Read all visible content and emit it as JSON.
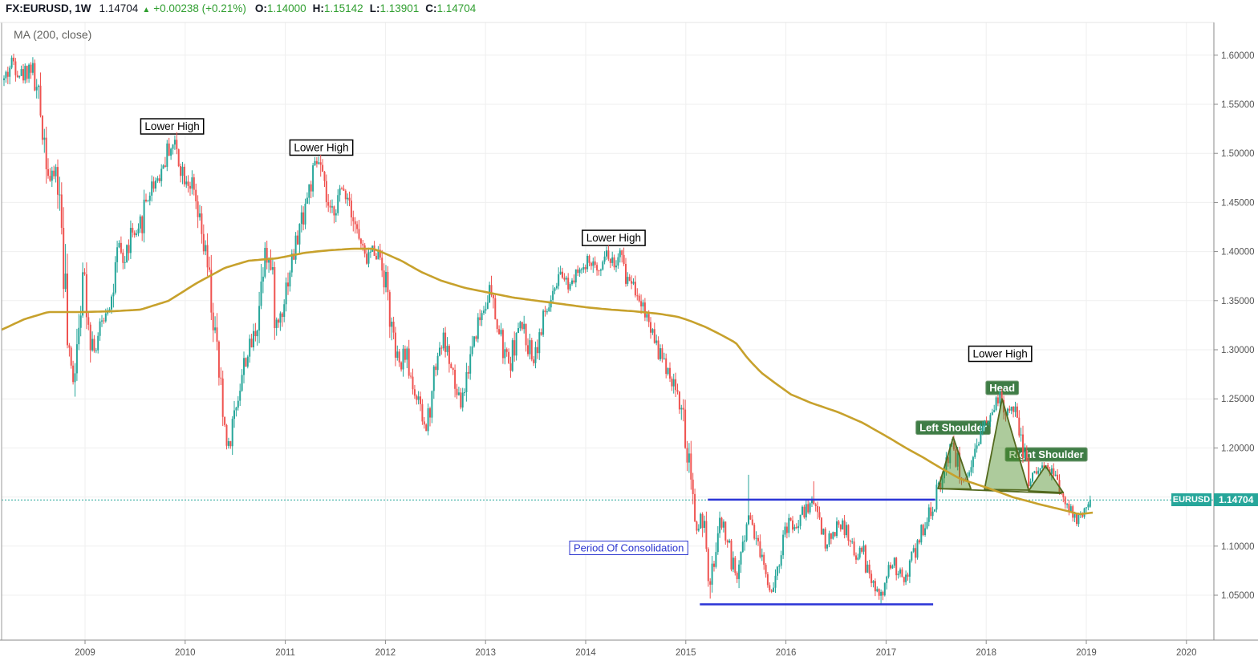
{
  "header": {
    "symbol": "FX:EURUSD, 1W",
    "price": "1.14704",
    "direction_arrow": "▲",
    "change": "+0.00238 (+0.21%)",
    "open_label": "O:",
    "open": "1.14000",
    "high_label": "H:",
    "high": "1.15142",
    "low_label": "L:",
    "low": "1.13901",
    "close_label": "C:",
    "close": "1.14704"
  },
  "indicator": {
    "label": "MA (200, close)"
  },
  "price_scale": {
    "ticks": [
      "1.60000",
      "1.55000",
      "1.50000",
      "1.45000",
      "1.40000",
      "1.35000",
      "1.30000",
      "1.25000",
      "1.20000",
      "1.15000",
      "1.10000",
      "1.05000"
    ],
    "tick_values": [
      1.6,
      1.55,
      1.5,
      1.45,
      1.4,
      1.35,
      1.3,
      1.25,
      1.2,
      1.15,
      1.1,
      1.05
    ]
  },
  "time_scale": {
    "years": [
      "2009",
      "2010",
      "2011",
      "2012",
      "2013",
      "2014",
      "2015",
      "2016",
      "2017",
      "2018",
      "2019",
      "2020"
    ],
    "year_values": [
      2009,
      2010,
      2011,
      2012,
      2013,
      2014,
      2015,
      2016,
      2017,
      2018,
      2019,
      2020
    ]
  },
  "price_line": {
    "symbol_badge": "EURUSD",
    "price_badge": "1.14704",
    "value": 1.14704
  },
  "colors": {
    "up": "#26a69a",
    "down": "#ef5350",
    "ma": "#c7a12c",
    "grid": "#efefef",
    "axis_border": "#8a8a8a",
    "top_border": "#e4e4e4",
    "axis_text": "#555555",
    "header_green": "#2f9e2f",
    "badge": "#26a69a",
    "blue_ray": "#2b35d6",
    "hs_fill": "rgba(73,140,36,0.45)",
    "hs_stroke": "#53691e",
    "label_green_bg": "#3f7d46",
    "label_green_border": "#7ba07b",
    "label_blue": "#2b35cf"
  },
  "chart_data": {
    "type": "candlestick",
    "symbol": "FX:EURUSD",
    "interval": "1W",
    "ohlc_current": {
      "open": 1.14,
      "high": 1.15142,
      "low": 1.13901,
      "close": 1.14704
    },
    "close_path": [
      [
        2008.191,
        1.5745
      ],
      [
        2008.279,
        1.595
      ],
      [
        2008.375,
        1.5786
      ],
      [
        2008.455,
        1.5909
      ],
      [
        2008.535,
        1.5541
      ],
      [
        2008.599,
        1.5132
      ],
      [
        2008.655,
        1.4683
      ],
      [
        2008.711,
        1.4846
      ],
      [
        2008.775,
        1.4193
      ],
      [
        2008.831,
        1.2886
      ],
      [
        2008.887,
        1.2722
      ],
      [
        2008.936,
        1.3376
      ],
      [
        2008.992,
        1.3784
      ],
      [
        2009.056,
        1.3131
      ],
      [
        2009.112,
        1.3008
      ],
      [
        2009.192,
        1.3376
      ],
      [
        2009.272,
        1.3539
      ],
      [
        2009.337,
        1.4029
      ],
      [
        2009.393,
        1.3866
      ],
      [
        2009.457,
        1.4193
      ],
      [
        2009.529,
        1.4111
      ],
      [
        2009.593,
        1.4479
      ],
      [
        2009.673,
        1.4683
      ],
      [
        2009.753,
        1.4806
      ],
      [
        2009.833,
        1.5051
      ],
      [
        2009.898,
        1.5092
      ],
      [
        2009.978,
        1.4806
      ],
      [
        2010.058,
        1.4683
      ],
      [
        2010.138,
        1.4274
      ],
      [
        2010.218,
        1.3866
      ],
      [
        2010.298,
        1.3131
      ],
      [
        2010.378,
        1.2314
      ],
      [
        2010.434,
        1.2028
      ],
      [
        2010.514,
        1.2477
      ],
      [
        2010.595,
        1.2886
      ],
      [
        2010.675,
        1.309
      ],
      [
        2010.731,
        1.3376
      ],
      [
        2010.795,
        1.4111
      ],
      [
        2010.859,
        1.3784
      ],
      [
        2010.915,
        1.3213
      ],
      [
        2010.971,
        1.3458
      ],
      [
        2011.035,
        1.3784
      ],
      [
        2011.116,
        1.4111
      ],
      [
        2011.196,
        1.4479
      ],
      [
        2011.276,
        1.4765
      ],
      [
        2011.332,
        1.4928
      ],
      [
        2011.396,
        1.456
      ],
      [
        2011.452,
        1.4356
      ],
      [
        2011.516,
        1.4519
      ],
      [
        2011.58,
        1.4642
      ],
      [
        2011.653,
        1.4519
      ],
      [
        2011.717,
        1.4193
      ],
      [
        2011.797,
        1.3907
      ],
      [
        2011.877,
        1.4029
      ],
      [
        2011.957,
        1.3948
      ],
      [
        2012.021,
        1.358
      ],
      [
        2012.077,
        1.3049
      ],
      [
        2012.141,
        1.2804
      ],
      [
        2012.198,
        1.2967
      ],
      [
        2012.254,
        1.2722
      ],
      [
        2012.318,
        1.2477
      ],
      [
        2012.382,
        1.2232
      ],
      [
        2012.41,
        1.2185
      ],
      [
        2012.462,
        1.264
      ],
      [
        2012.518,
        1.2967
      ],
      [
        2012.582,
        1.3131
      ],
      [
        2012.638,
        1.2886
      ],
      [
        2012.702,
        1.2559
      ],
      [
        2012.758,
        1.2436
      ],
      [
        2012.823,
        1.2804
      ],
      [
        2012.879,
        1.3131
      ],
      [
        2012.959,
        1.3376
      ],
      [
        2013.039,
        1.3621
      ],
      [
        2013.103,
        1.3294
      ],
      [
        2013.183,
        1.2967
      ],
      [
        2013.239,
        1.2845
      ],
      [
        2013.303,
        1.3131
      ],
      [
        2013.359,
        1.3253
      ],
      [
        2013.424,
        1.3049
      ],
      [
        2013.48,
        1.2926
      ],
      [
        2013.544,
        1.3172
      ],
      [
        2013.6,
        1.3376
      ],
      [
        2013.68,
        1.3539
      ],
      [
        2013.76,
        1.3743
      ],
      [
        2013.84,
        1.3662
      ],
      [
        2013.904,
        1.3866
      ],
      [
        2013.977,
        1.3784
      ],
      [
        2014.041,
        1.3907
      ],
      [
        2014.105,
        1.3784
      ],
      [
        2014.161,
        1.3948
      ],
      [
        2014.217,
        1.3988
      ],
      [
        2014.281,
        1.3866
      ],
      [
        2014.345,
        1.3948
      ],
      [
        2014.402,
        1.3743
      ],
      [
        2014.466,
        1.3703
      ],
      [
        2014.522,
        1.358
      ],
      [
        2014.586,
        1.3417
      ],
      [
        2014.642,
        1.3253
      ],
      [
        2014.706,
        1.309
      ],
      [
        2014.762,
        1.2886
      ],
      [
        2014.826,
        1.2804
      ],
      [
        2014.883,
        1.264
      ],
      [
        2014.947,
        1.2436
      ],
      [
        2015.003,
        1.2028
      ],
      [
        2015.059,
        1.1497
      ],
      [
        2015.107,
        1.117
      ],
      [
        2015.163,
        1.1333
      ],
      [
        2015.203,
        1.0843
      ],
      [
        2015.243,
        1.0557
      ],
      [
        2015.299,
        1.1007
      ],
      [
        2015.347,
        1.1252
      ],
      [
        2015.403,
        1.1129
      ],
      [
        2015.459,
        1.0843
      ],
      [
        2015.507,
        1.068
      ],
      [
        2015.563,
        1.1007
      ],
      [
        2015.62,
        1.1333
      ],
      [
        2015.684,
        1.117
      ],
      [
        2015.748,
        1.0925
      ],
      [
        2015.804,
        1.068
      ],
      [
        2015.86,
        1.0557
      ],
      [
        2015.924,
        1.0843
      ],
      [
        2015.988,
        1.1129
      ],
      [
        2016.044,
        1.1252
      ],
      [
        2016.108,
        1.117
      ],
      [
        2016.164,
        1.1333
      ],
      [
        2016.229,
        1.1415
      ],
      [
        2016.285,
        1.1456
      ],
      [
        2016.349,
        1.1211
      ],
      [
        2016.405,
        1.1007
      ],
      [
        2016.469,
        1.1129
      ],
      [
        2016.525,
        1.1252
      ],
      [
        2016.589,
        1.117
      ],
      [
        2016.646,
        1.1007
      ],
      [
        2016.71,
        1.0884
      ],
      [
        2016.766,
        1.0966
      ],
      [
        2016.83,
        1.068
      ],
      [
        2016.886,
        1.0557
      ],
      [
        2016.95,
        1.0475
      ],
      [
        2017.006,
        1.068
      ],
      [
        2017.07,
        1.0843
      ],
      [
        2017.126,
        1.0721
      ],
      [
        2017.191,
        1.0639
      ],
      [
        2017.247,
        1.0843
      ],
      [
        2017.311,
        1.1007
      ],
      [
        2017.367,
        1.117
      ],
      [
        2017.431,
        1.1333
      ],
      [
        2017.487,
        1.1456
      ],
      [
        2017.543,
        1.166
      ],
      [
        2017.607,
        1.1905
      ],
      [
        2017.655,
        1.2052
      ],
      [
        2017.711,
        1.1864
      ],
      [
        2017.767,
        1.1701
      ],
      [
        2017.823,
        1.166
      ],
      [
        2017.871,
        1.1823
      ],
      [
        2017.927,
        1.2028
      ],
      [
        2017.983,
        1.2232
      ],
      [
        2018.039,
        1.2395
      ],
      [
        2018.104,
        1.2477
      ],
      [
        2018.152,
        1.2518
      ],
      [
        2018.208,
        1.2354
      ],
      [
        2018.264,
        1.2395
      ],
      [
        2018.312,
        1.2273
      ],
      [
        2018.368,
        1.1987
      ],
      [
        2018.424,
        1.166
      ],
      [
        2018.472,
        1.1742
      ],
      [
        2018.528,
        1.1823
      ],
      [
        2018.584,
        1.1782
      ],
      [
        2018.633,
        1.1807
      ],
      [
        2018.689,
        1.166
      ],
      [
        2018.745,
        1.1538
      ],
      [
        2018.793,
        1.1456
      ],
      [
        2018.849,
        1.1333
      ],
      [
        2018.905,
        1.1252
      ],
      [
        2018.953,
        1.1292
      ],
      [
        2019.009,
        1.1374
      ],
      [
        2019.049,
        1.14704
      ]
    ],
    "wick_spikes": [
      {
        "t": 2015.627,
        "p": 1.1726,
        "dir": "up"
      },
      {
        "t": 2016.284,
        "p": 1.166,
        "dir": "up"
      },
      {
        "t": 2016.95,
        "p": 1.0408,
        "dir": "down"
      },
      {
        "t": 2015.243,
        "p": 1.0465,
        "dir": "down"
      }
    ],
    "ma_path": [
      [
        2008.151,
        1.3196
      ],
      [
        2008.391,
        1.331
      ],
      [
        2008.631,
        1.3384
      ],
      [
        2008.952,
        1.3384
      ],
      [
        2009.272,
        1.3392
      ],
      [
        2009.553,
        1.3408
      ],
      [
        2009.833,
        1.3498
      ],
      [
        2010.114,
        1.3678
      ],
      [
        2010.394,
        1.3833
      ],
      [
        2010.635,
        1.3907
      ],
      [
        2010.915,
        1.3931
      ],
      [
        2011.196,
        1.3988
      ],
      [
        2011.436,
        1.4013
      ],
      [
        2011.677,
        1.4029
      ],
      [
        2011.877,
        1.4029
      ],
      [
        2011.997,
        1.398
      ],
      [
        2012.158,
        1.3907
      ],
      [
        2012.358,
        1.3792
      ],
      [
        2012.558,
        1.3703
      ],
      [
        2012.799,
        1.3629
      ],
      [
        2013.039,
        1.358
      ],
      [
        2013.279,
        1.3531
      ],
      [
        2013.52,
        1.3498
      ],
      [
        2013.76,
        1.3466
      ],
      [
        2014.001,
        1.3433
      ],
      [
        2014.241,
        1.3409
      ],
      [
        2014.482,
        1.3392
      ],
      [
        2014.722,
        1.3368
      ],
      [
        2014.923,
        1.3335
      ],
      [
        2015.043,
        1.3294
      ],
      [
        2015.203,
        1.3229
      ],
      [
        2015.363,
        1.3147
      ],
      [
        2015.5,
        1.307
      ],
      [
        2015.62,
        1.291
      ],
      [
        2015.75,
        1.277
      ],
      [
        2015.9,
        1.2655
      ],
      [
        2016.05,
        1.2545
      ],
      [
        2016.245,
        1.2461
      ],
      [
        2016.525,
        1.2363
      ],
      [
        2016.766,
        1.2256
      ],
      [
        2017.047,
        1.2093
      ],
      [
        2017.207,
        1.1995
      ],
      [
        2017.367,
        1.1905
      ],
      [
        2017.527,
        1.1807
      ],
      [
        2017.743,
        1.1684
      ],
      [
        2018.008,
        1.1595
      ],
      [
        2018.272,
        1.1497
      ],
      [
        2018.545,
        1.1423
      ],
      [
        2018.809,
        1.1358
      ],
      [
        2018.929,
        1.1325
      ],
      [
        2019.065,
        1.1341
      ]
    ],
    "annotations": [
      {
        "id": "lower-high-1",
        "text": "Lower High",
        "style": "black",
        "t": 2009.87,
        "p": 1.5275
      },
      {
        "id": "lower-high-2",
        "text": "Lower High",
        "style": "black",
        "t": 2011.36,
        "p": 1.5059
      },
      {
        "id": "lower-high-3",
        "text": "Lower High",
        "style": "black",
        "t": 2014.28,
        "p": 1.4139
      },
      {
        "id": "lower-high-4",
        "text": "Lower High",
        "style": "black",
        "t": 2018.14,
        "p": 1.2959
      },
      {
        "id": "head-label",
        "text": "Head",
        "style": "green",
        "t": 2018.16,
        "p": 1.2612
      },
      {
        "id": "left-shoulder-label",
        "text": "Left Shoulder",
        "style": "green",
        "t": 2017.67,
        "p": 1.2207
      },
      {
        "id": "right-shoulder-label",
        "text": "Right Shoulder",
        "style": "green",
        "t": 2018.6,
        "p": 1.1934
      },
      {
        "id": "consolidation-label",
        "text": "Period Of Consolidation",
        "style": "blue",
        "t": 2014.43,
        "p": 1.0982
      }
    ],
    "rays": [
      {
        "id": "resistance-ray",
        "p": 1.1473,
        "t1": 2015.22,
        "t2": 2017.49
      },
      {
        "id": "support-ray",
        "p": 1.0407,
        "t1": 2015.14,
        "t2": 2017.47
      }
    ],
    "pattern": {
      "shapes": [
        [
          [
            2017.519,
            1.1586
          ],
          [
            2017.671,
            1.2109
          ],
          [
            2017.847,
            1.1582
          ]
        ],
        [
          [
            2017.983,
            1.1578
          ],
          [
            2018.159,
            1.2501
          ],
          [
            2018.424,
            1.157
          ]
        ],
        [
          [
            2018.424,
            1.1562
          ],
          [
            2018.592,
            1.1815
          ],
          [
            2018.769,
            1.1545
          ]
        ]
      ],
      "baseline": [
        [
          2017.519,
          1.1586
        ],
        [
          2018.753,
          1.1537
        ]
      ]
    }
  }
}
